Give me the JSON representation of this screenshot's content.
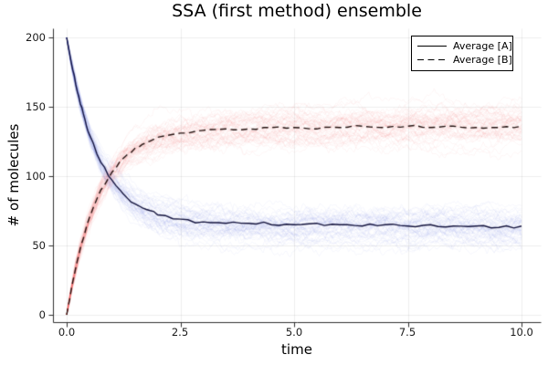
{
  "title": "SSA (first method) ensemble",
  "axes": {
    "x": {
      "label": "time",
      "tick_labels": [
        "0.0",
        "2.5",
        "5.0",
        "7.5",
        "10.0"
      ],
      "tick_values": [
        0,
        2.5,
        5,
        7.5,
        10
      ],
      "range": [
        0,
        10
      ]
    },
    "y": {
      "label": "# of molecules",
      "tick_labels": [
        "0",
        "50",
        "100",
        "150",
        "200"
      ],
      "tick_values": [
        0,
        50,
        100,
        150,
        200
      ],
      "range": [
        0,
        200
      ]
    }
  },
  "legend": {
    "entries": [
      {
        "label": "Average [A]",
        "line": "solid"
      },
      {
        "label": "Average [B]",
        "line": "dashed"
      }
    ]
  },
  "colors": {
    "background": "#ffffff",
    "grid": "rgba(0,0,0,0.07)",
    "axis": "#2f2f2f",
    "tick_text": "#1a1a1a",
    "trajectory_blue": "#2d3cdc",
    "trajectory_red": "#e62d2d",
    "average_a_line": "#12123c",
    "average_b_line": "#241210"
  },
  "chart_data": {
    "type": "line",
    "title": "SSA (first method) ensemble",
    "xlabel": "time",
    "ylabel": "# of molecules",
    "xlim": [
      0,
      10
    ],
    "ylim": [
      0,
      200
    ],
    "grid": true,
    "legend_position": "top-right",
    "x": [
      0,
      0.1,
      0.2,
      0.3,
      0.4,
      0.5,
      0.75,
      1,
      1.25,
      1.5,
      1.75,
      2,
      2.5,
      3,
      3.5,
      4,
      4.5,
      5,
      5.5,
      6,
      6.5,
      7,
      7.5,
      8,
      8.5,
      9,
      9.5,
      10
    ],
    "series": [
      {
        "name": "Average [A]",
        "style": "solid",
        "color": "#12123c",
        "values": [
          200,
          182,
          166,
          152,
          141,
          130,
          110,
          97,
          87,
          80,
          76,
          72,
          69,
          67,
          66,
          66,
          65,
          65,
          66,
          65,
          64,
          65,
          64,
          65,
          64,
          64,
          63,
          64
        ]
      },
      {
        "name": "Average [B]",
        "style": "dashed",
        "color": "#241210",
        "values": [
          0,
          18,
          34,
          48,
          59,
          70,
          90,
          103,
          113,
          120,
          124,
          128,
          131,
          133,
          134,
          134,
          135,
          135,
          134,
          135,
          136,
          135,
          136,
          135,
          136,
          135,
          135,
          136
        ]
      }
    ],
    "ensemble": {
      "trajectories_per_species": 55,
      "opacity": 0.045,
      "steady_state_spread": 7,
      "species": [
        {
          "name": "[A] trajectories",
          "color": "#2d3cdc",
          "follows_series": 0
        },
        {
          "name": "[B] trajectories",
          "color": "#e62d2d",
          "follows_series": 1
        }
      ]
    }
  }
}
